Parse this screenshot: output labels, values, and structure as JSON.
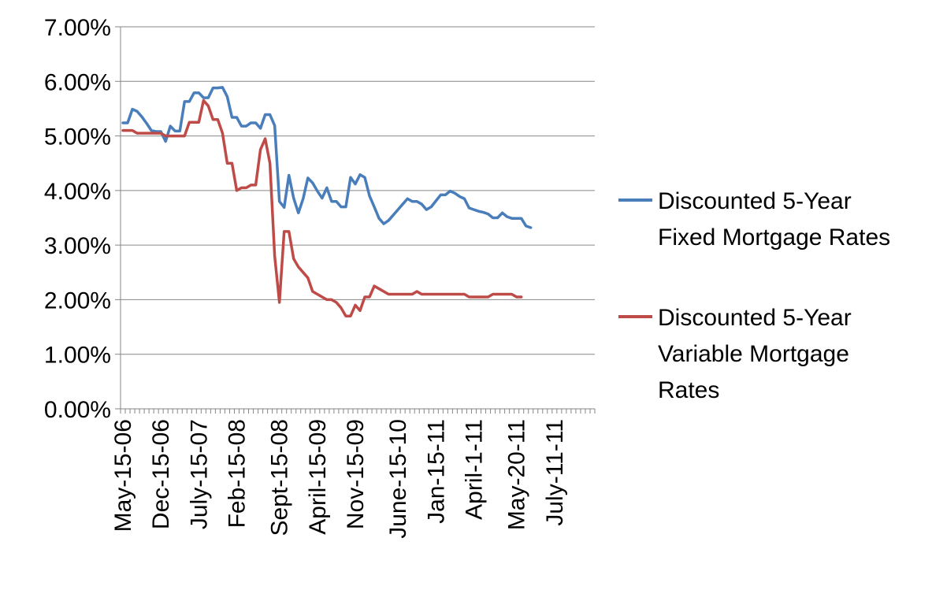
{
  "chart_data": {
    "type": "line",
    "title": "",
    "xlabel": "",
    "ylabel": "",
    "ylim": [
      0,
      0.07
    ],
    "y_tick_labels": [
      "0.00%",
      "1.00%",
      "2.00%",
      "3.00%",
      "4.00%",
      "5.00%",
      "6.00%",
      "7.00%"
    ],
    "y_ticks": [
      0,
      0.01,
      0.02,
      0.03,
      0.04,
      0.05,
      0.06,
      0.07
    ],
    "x_point_count": 100,
    "x_tick_labels": [
      {
        "index": 0,
        "label": "May-15-06"
      },
      {
        "index": 8,
        "label": "Dec-15-06"
      },
      {
        "index": 16,
        "label": "July-15-07"
      },
      {
        "index": 24,
        "label": "Feb-15-08"
      },
      {
        "index": 33,
        "label": "Sept-15-08"
      },
      {
        "index": 41,
        "label": "April-15-09"
      },
      {
        "index": 49,
        "label": "Nov-15-09"
      },
      {
        "index": 58,
        "label": "June-15-10"
      },
      {
        "index": 66,
        "label": "Jan-15-11"
      },
      {
        "index": 74,
        "label": "April-1-11"
      },
      {
        "index": 83,
        "label": "May-20-11"
      },
      {
        "index": 91,
        "label": "July-11-11"
      }
    ],
    "grid": true,
    "legend_position": "right",
    "series": [
      {
        "name": "Discounted 5-Year Fixed Mortgage Rates",
        "color": "#4a7ebb",
        "values": [
          0.0524,
          0.0524,
          0.0549,
          0.0545,
          0.0535,
          0.0523,
          0.051,
          0.0508,
          0.0508,
          0.049,
          0.0518,
          0.0509,
          0.0509,
          0.0563,
          0.0563,
          0.0579,
          0.0579,
          0.057,
          0.057,
          0.0588,
          0.0588,
          0.0589,
          0.0572,
          0.0534,
          0.0534,
          0.0518,
          0.0518,
          0.0524,
          0.0524,
          0.0514,
          0.0539,
          0.0539,
          0.0519,
          0.038,
          0.0369,
          0.0428,
          0.0386,
          0.0359,
          0.0385,
          0.0423,
          0.0414,
          0.0399,
          0.0386,
          0.0405,
          0.038,
          0.038,
          0.037,
          0.037,
          0.0424,
          0.0412,
          0.0429,
          0.0424,
          0.039,
          0.037,
          0.0349,
          0.0339,
          0.0345,
          0.0355,
          0.0365,
          0.0375,
          0.0385,
          0.038,
          0.038,
          0.0375,
          0.0365,
          0.037,
          0.0381,
          0.0392,
          0.0392,
          0.0399,
          0.0395,
          0.0389,
          0.0385,
          0.0368,
          0.0365,
          0.0362,
          0.036,
          0.0357,
          0.035,
          0.035,
          0.0359,
          0.0352,
          0.0349,
          0.0349,
          0.0349,
          0.0335,
          0.0332
        ]
      },
      {
        "name": "Discounted 5-Year Variable Mortgage Rates",
        "color": "#be4b48",
        "values": [
          0.051,
          0.051,
          0.051,
          0.0505,
          0.0505,
          0.0505,
          0.0505,
          0.0505,
          0.0505,
          0.05,
          0.05,
          0.05,
          0.05,
          0.05,
          0.0525,
          0.0525,
          0.0525,
          0.0565,
          0.0555,
          0.053,
          0.053,
          0.0505,
          0.045,
          0.045,
          0.04,
          0.0405,
          0.0405,
          0.041,
          0.041,
          0.0475,
          0.0495,
          0.045,
          0.028,
          0.0195,
          0.0325,
          0.0325,
          0.0275,
          0.026,
          0.025,
          0.024,
          0.0215,
          0.021,
          0.0205,
          0.02,
          0.02,
          0.0195,
          0.0185,
          0.017,
          0.017,
          0.019,
          0.018,
          0.0205,
          0.0205,
          0.0225,
          0.022,
          0.0215,
          0.021,
          0.021,
          0.021,
          0.021,
          0.021,
          0.021,
          0.0215,
          0.021,
          0.021,
          0.021,
          0.021,
          0.021,
          0.021,
          0.021,
          0.021,
          0.021,
          0.021,
          0.0205,
          0.0205,
          0.0205,
          0.0205,
          0.0205,
          0.021,
          0.021,
          0.021,
          0.021,
          0.021,
          0.0205,
          0.0205
        ]
      }
    ],
    "legend": [
      {
        "lines": [
          "Discounted 5-Year",
          "Fixed Mortgage Rates"
        ]
      },
      {
        "lines": [
          "Discounted 5-Year",
          "Variable Mortgage",
          "Rates"
        ]
      }
    ]
  }
}
